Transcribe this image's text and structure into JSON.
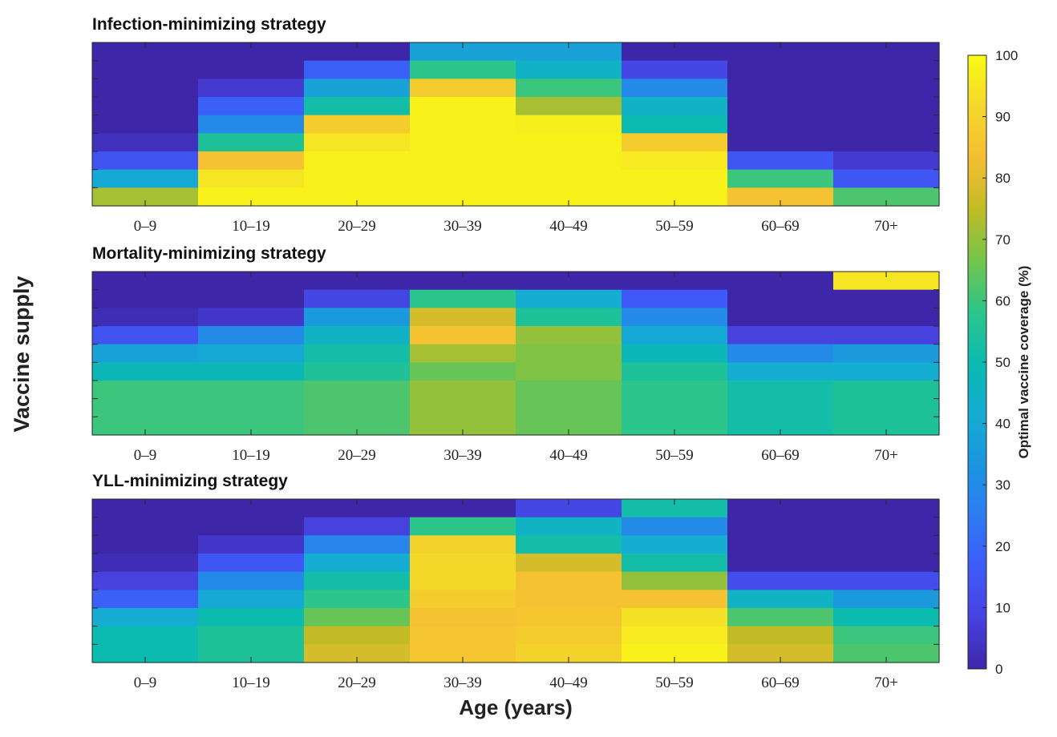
{
  "chart_data": {
    "type": "heatmap",
    "ylabel": "Vaccine supply",
    "xlabel": "Age (years)",
    "categories": [
      "0–9",
      "10–19",
      "20–29",
      "30–39",
      "40–49",
      "50–59",
      "60–69",
      "70+"
    ],
    "colorbar": {
      "label": "Optimal vaccine coverage (%)",
      "ticks": [
        0,
        10,
        20,
        30,
        40,
        50,
        60,
        70,
        80,
        90,
        100
      ],
      "range": [
        0,
        100
      ],
      "colormap": [
        "#3e26a8",
        "#4742e0",
        "#3d5bf9",
        "#2e7bf3",
        "#1b96df",
        "#15acd2",
        "#0bbbb0",
        "#2dc58a",
        "#75c54b",
        "#c2bb26",
        "#f5be32",
        "#f4d72b",
        "#f9fb15"
      ]
    },
    "panels": [
      {
        "title": "Infection-minimizing strategy",
        "rows_note": "rows from top (highest supply) to bottom (lowest supply), 9 rows",
        "matrix": [
          [
            0,
            0,
            0,
            38,
            38,
            0,
            0,
            0
          ],
          [
            0,
            0,
            18,
            58,
            45,
            10,
            0,
            0
          ],
          [
            0,
            6,
            38,
            88,
            60,
            30,
            0,
            0
          ],
          [
            0,
            18,
            52,
            98,
            72,
            45,
            0,
            0
          ],
          [
            0,
            30,
            88,
            98,
            97,
            50,
            0,
            0
          ],
          [
            3,
            55,
            95,
            98,
            98,
            88,
            0,
            0
          ],
          [
            14,
            85,
            98,
            98,
            98,
            96,
            15,
            6
          ],
          [
            40,
            95,
            98,
            98,
            98,
            98,
            60,
            15
          ],
          [
            72,
            98,
            98,
            98,
            98,
            98,
            85,
            62
          ]
        ]
      },
      {
        "title": "Mortality-minimizing strategy",
        "rows_note": "rows from top (highest supply) to bottom (lowest supply), 9 rows",
        "matrix": [
          [
            0,
            0,
            0,
            0,
            0,
            0,
            0,
            95
          ],
          [
            0,
            0,
            10,
            58,
            42,
            16,
            0,
            0
          ],
          [
            2,
            5,
            35,
            78,
            55,
            30,
            0,
            0
          ],
          [
            14,
            30,
            45,
            85,
            70,
            40,
            8,
            8
          ],
          [
            38,
            40,
            52,
            72,
            68,
            48,
            30,
            35
          ],
          [
            48,
            48,
            55,
            65,
            68,
            55,
            42,
            42
          ],
          [
            60,
            60,
            62,
            70,
            65,
            58,
            52,
            55
          ],
          [
            60,
            60,
            62,
            70,
            65,
            58,
            52,
            55
          ],
          [
            60,
            60,
            62,
            70,
            65,
            58,
            52,
            55
          ]
        ]
      },
      {
        "title": "YLL-minimizing strategy",
        "rows_note": "rows from top (highest supply) to bottom (lowest supply), 9 rows",
        "matrix": [
          [
            0,
            0,
            0,
            0,
            10,
            52,
            0,
            0
          ],
          [
            0,
            0,
            8,
            58,
            45,
            30,
            0,
            0
          ],
          [
            0,
            5,
            28,
            90,
            52,
            42,
            0,
            0
          ],
          [
            2,
            15,
            42,
            92,
            78,
            52,
            0,
            0
          ],
          [
            8,
            30,
            52,
            92,
            85,
            70,
            12,
            12
          ],
          [
            18,
            40,
            58,
            88,
            85,
            85,
            45,
            35
          ],
          [
            42,
            50,
            65,
            85,
            86,
            94,
            62,
            50
          ],
          [
            50,
            55,
            75,
            86,
            88,
            96,
            75,
            60
          ],
          [
            50,
            55,
            78,
            86,
            90,
            98,
            78,
            62
          ]
        ]
      }
    ]
  }
}
